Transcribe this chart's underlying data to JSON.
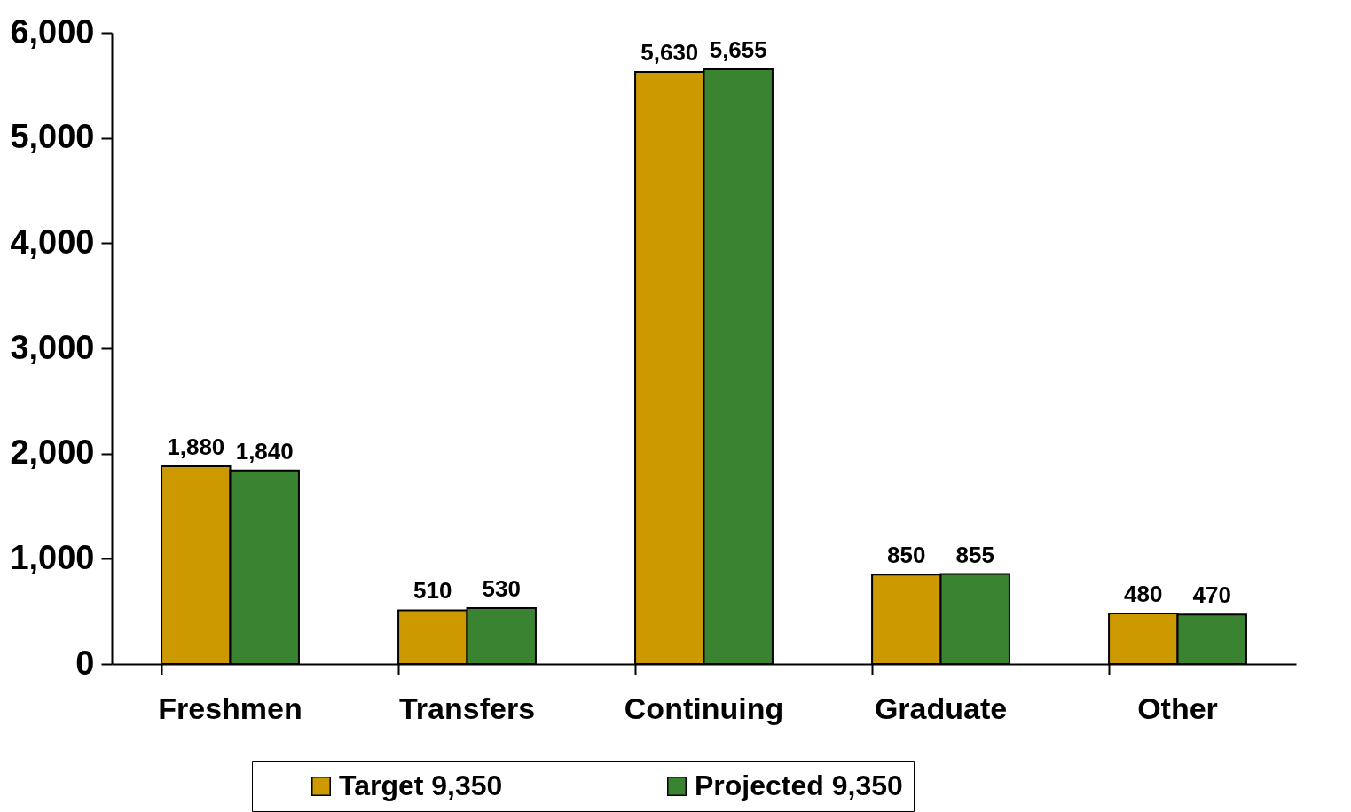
{
  "chart_data": {
    "type": "bar",
    "categories": [
      "Freshmen",
      "Transfers",
      "Continuing",
      "Graduate",
      "Other"
    ],
    "series": [
      {
        "name": "Target 9,350",
        "color": "#cc9900",
        "values": [
          1880,
          510,
          5630,
          850,
          480
        ],
        "value_labels": [
          "1,880",
          "510",
          "5,630",
          "850",
          "480"
        ]
      },
      {
        "name": "Projected 9,350",
        "color": "#3a8431",
        "values": [
          1840,
          530,
          5655,
          855,
          470
        ],
        "value_labels": [
          "1,840",
          "530",
          "5,655",
          "855",
          "470"
        ]
      }
    ],
    "ylim": [
      0,
      6000
    ],
    "yticks": [
      0,
      {
        "value": 1000,
        "label": "1,000"
      },
      {
        "value": 2000,
        "label": "2,000"
      },
      {
        "value": 3000,
        "label": "3,000"
      },
      {
        "value": 4000,
        "label": "4,000"
      },
      {
        "value": 5000,
        "label": "5,000"
      },
      {
        "value": 6000,
        "label": "6,000"
      }
    ],
    "legend": "bottom"
  }
}
